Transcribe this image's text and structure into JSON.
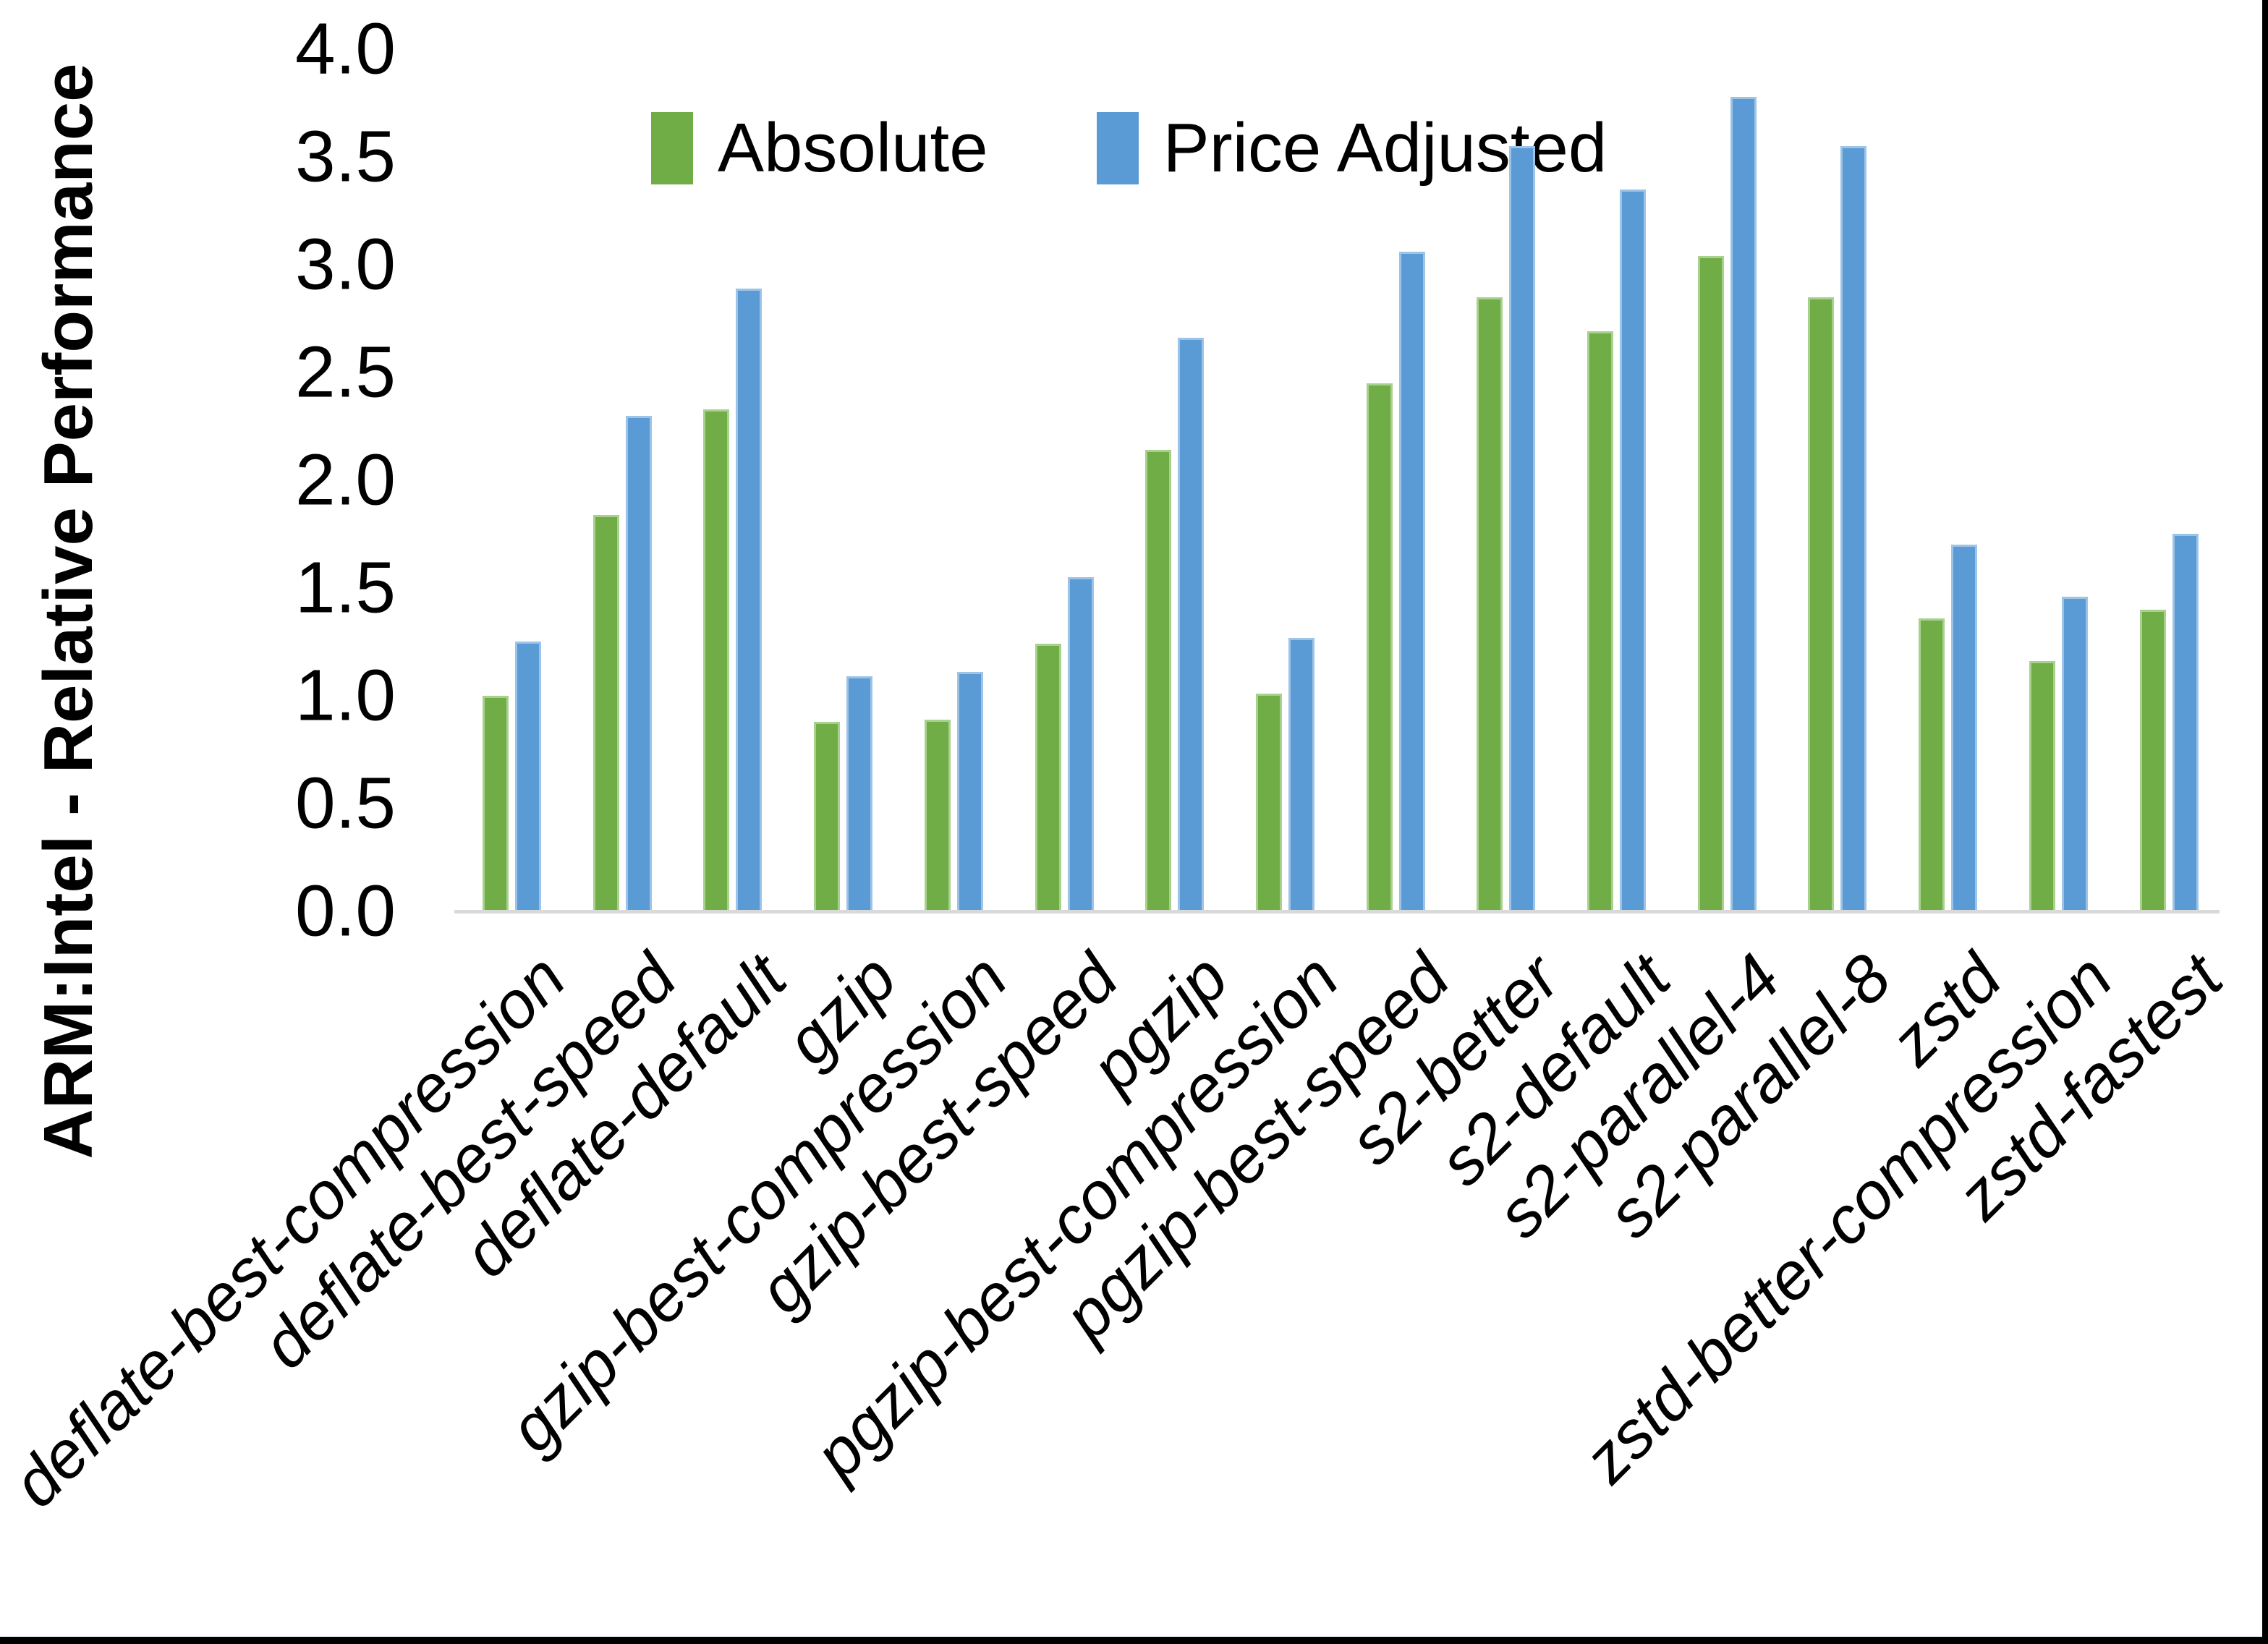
{
  "chart_data": {
    "type": "bar",
    "title": "",
    "xlabel": "",
    "ylabel": "ARM:Intel - Relative Performance",
    "ylim": [
      0.0,
      4.0
    ],
    "ytick_step": 0.5,
    "yticks": [
      "4.0",
      "3.5",
      "3.0",
      "2.5",
      "2.0",
      "1.5",
      "1.0",
      "0.5",
      "0.0"
    ],
    "grid": false,
    "legend_position": "top-center",
    "axis_line_color": "#D9D9D9",
    "categories": [
      "deflate-best-compression",
      "deflate-best-speed",
      "deflate-default",
      "gzip",
      "gzip-best-compression",
      "gzip-best-speed",
      "pgzip",
      "pgzip-best-compression",
      "pgzip-best-speed",
      "s2-better",
      "s2-default",
      "s2-parallel-4",
      "s2-parallel-8",
      "zstd",
      "zstd-better-compression",
      "zstd-fastest"
    ],
    "series": [
      {
        "name": "Absolute",
        "color": "#70AD47",
        "edge_color": "#A9D18E",
        "values": [
          1.0,
          1.84,
          2.33,
          0.88,
          0.89,
          1.24,
          2.14,
          1.01,
          2.45,
          2.85,
          2.69,
          3.04,
          2.85,
          1.36,
          1.16,
          1.4
        ]
      },
      {
        "name": "Price Adjusted",
        "color": "#5B9BD5",
        "edge_color": "#9DC3E6",
        "values": [
          1.25,
          2.3,
          2.89,
          1.09,
          1.11,
          1.55,
          2.66,
          1.27,
          3.06,
          3.55,
          3.35,
          3.78,
          3.55,
          1.7,
          1.46,
          1.75
        ]
      }
    ],
    "frame_border_color": "#000000"
  }
}
